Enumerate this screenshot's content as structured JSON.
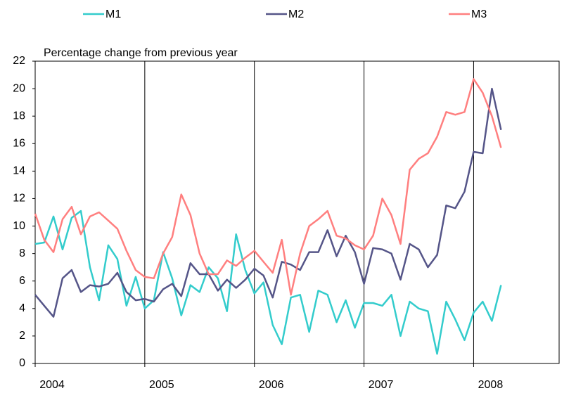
{
  "chart_data": {
    "type": "line",
    "annotation": "Percentage change from previous year",
    "x": [
      2004,
      2004.083,
      2004.167,
      2004.25,
      2004.333,
      2004.417,
      2004.5,
      2004.583,
      2004.667,
      2004.75,
      2004.833,
      2004.917,
      2005,
      2005.083,
      2005.167,
      2005.25,
      2005.333,
      2005.417,
      2005.5,
      2005.583,
      2005.667,
      2005.75,
      2005.833,
      2005.917,
      2006,
      2006.083,
      2006.167,
      2006.25,
      2006.333,
      2006.417,
      2006.5,
      2006.583,
      2006.667,
      2006.75,
      2006.833,
      2006.917,
      2007,
      2007.083,
      2007.167,
      2007.25,
      2007.333,
      2007.417,
      2007.5,
      2007.583,
      2007.667,
      2007.75,
      2007.833,
      2007.917,
      2008,
      2008.083,
      2008.167,
      2008.25
    ],
    "series": [
      {
        "name": "M1",
        "color": "#33cccc",
        "values": [
          8.7,
          8.8,
          10.7,
          8.3,
          10.6,
          11.1,
          7.0,
          4.6,
          8.6,
          7.6,
          4.2,
          6.3,
          4.0,
          4.6,
          8.1,
          6.2,
          3.5,
          5.7,
          5.2,
          7.0,
          6.2,
          3.8,
          9.4,
          6.8,
          5.1,
          5.9,
          2.8,
          1.4,
          4.8,
          5.0,
          2.3,
          5.3,
          5.0,
          3.0,
          4.6,
          2.6,
          4.4,
          4.4,
          4.2,
          5.0,
          2.0,
          4.5,
          4.0,
          3.8,
          0.7,
          4.5,
          3.2,
          1.7,
          3.7,
          4.5,
          3.1,
          5.7
        ]
      },
      {
        "name": "M2",
        "color": "#555588",
        "values": [
          5.0,
          4.2,
          3.4,
          6.2,
          6.8,
          5.2,
          5.7,
          5.6,
          5.8,
          6.6,
          5.2,
          4.6,
          4.7,
          4.5,
          5.4,
          5.8,
          4.9,
          7.3,
          6.5,
          6.5,
          5.3,
          6.1,
          5.5,
          6.1,
          6.9,
          6.4,
          4.8,
          7.4,
          7.2,
          6.8,
          8.1,
          8.1,
          9.7,
          7.8,
          9.3,
          8.1,
          5.8,
          8.4,
          8.3,
          8.0,
          6.1,
          8.7,
          8.3,
          7.0,
          7.9,
          11.5,
          11.3,
          12.5,
          15.4,
          15.3,
          20.0,
          17.0
        ]
      },
      {
        "name": "M3",
        "color": "#ff7f7f",
        "values": [
          10.9,
          9.0,
          8.1,
          10.5,
          11.4,
          9.4,
          10.7,
          11.0,
          10.4,
          9.8,
          8.2,
          6.8,
          6.3,
          6.2,
          8.0,
          9.2,
          12.3,
          10.8,
          8.0,
          6.5,
          6.5,
          7.5,
          7.1,
          7.7,
          8.2,
          7.4,
          6.6,
          9.0,
          5.0,
          8.0,
          10.0,
          10.5,
          11.1,
          9.3,
          9.1,
          8.6,
          8.3,
          9.3,
          12.0,
          10.8,
          8.7,
          14.1,
          14.9,
          15.3,
          16.5,
          18.3,
          18.1,
          18.3,
          20.7,
          19.7,
          18.0,
          15.7
        ]
      }
    ],
    "xlim": [
      2004,
      2008.78
    ],
    "xticks": [
      2004,
      2005,
      2006,
      2007,
      2008
    ],
    "ylim": [
      0,
      22
    ],
    "yticks": [
      0,
      2,
      4,
      6,
      8,
      10,
      12,
      14,
      16,
      18,
      20,
      22
    ],
    "grid": "x",
    "legend": "top"
  }
}
